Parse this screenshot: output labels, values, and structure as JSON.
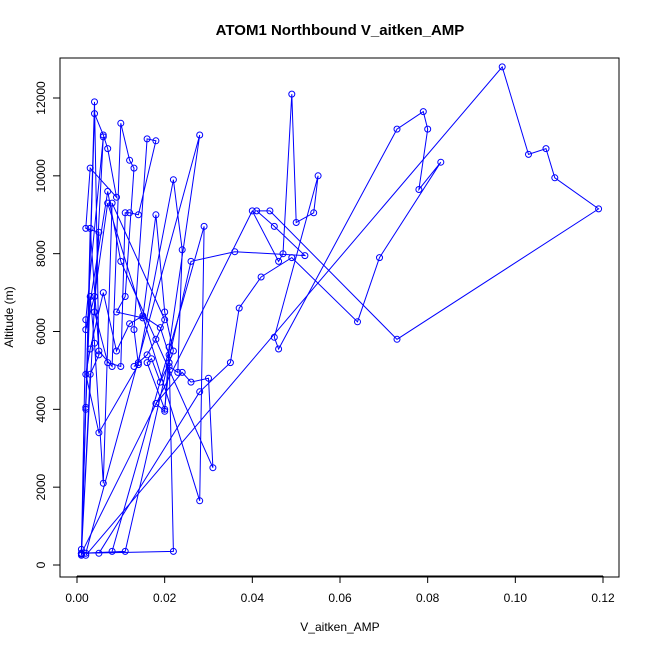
{
  "chart_data": {
    "type": "line",
    "title": "ATOM1 Northbound V_aitken_AMP",
    "xlabel": "V_aitken_AMP",
    "ylabel": "Altitude (m)",
    "xlim": [
      0.0,
      0.12
    ],
    "ylim": [
      0,
      12800
    ],
    "x_ticks": [
      0.0,
      0.02,
      0.04,
      0.06,
      0.08,
      0.1,
      0.12
    ],
    "x_tick_labels": [
      "0.00",
      "0.02",
      "0.04",
      "0.06",
      "0.08",
      "0.10",
      "0.12"
    ],
    "y_ticks": [
      0,
      2000,
      4000,
      6000,
      8000,
      10000,
      12000
    ],
    "y_tick_labels": [
      "0",
      "2000",
      "4000",
      "6000",
      "8000",
      "10000",
      "12000"
    ],
    "grid": false,
    "marker": "open-circle",
    "color": "#0000ff",
    "series": [
      {
        "x": [
          0.001,
          0.004,
          0.005,
          0.003,
          0.001,
          0.002,
          0.006,
          0.001,
          0.002,
          0.003,
          0.005,
          0.008,
          0.01,
          0.012,
          0.013,
          0.011,
          0.009,
          0.015,
          0.018,
          0.02,
          0.022,
          0.021,
          0.019,
          0.017,
          0.016,
          0.02,
          0.021,
          0.023,
          0.024,
          0.022,
          0.014,
          0.013,
          0.016,
          0.018,
          0.02,
          0.008,
          0.006,
          0.004,
          0.003,
          0.002,
          0.001
        ],
        "y": [
          300,
          11900,
          5400,
          4900,
          250,
          6300,
          11000,
          300,
          4000,
          8650,
          5500,
          5100,
          11350,
          10400,
          10200,
          6900,
          6500,
          6350,
          9000,
          6500,
          5500,
          5200,
          4700,
          5300,
          5200,
          4000,
          5100,
          4950,
          8100,
          9900,
          5200,
          5100,
          5400,
          5800,
          6300,
          9300,
          2100,
          5700,
          6900,
          4050,
          400
        ]
      },
      {
        "x": [
          0.001,
          0.004,
          0.006,
          0.007,
          0.009,
          0.003,
          0.002,
          0.005,
          0.004,
          0.007,
          0.01,
          0.011,
          0.012,
          0.014,
          0.018,
          0.016,
          0.013,
          0.014,
          0.005,
          0.002,
          0.003,
          0.006,
          0.009,
          0.012,
          0.015,
          0.019,
          0.021,
          0.022,
          0.001
        ],
        "y": [
          280,
          11600,
          11050,
          10700,
          9450,
          10200,
          8650,
          8550,
          6500,
          5200,
          5100,
          9050,
          9050,
          9000,
          10900,
          10950,
          6050,
          5150,
          3400,
          4900,
          5550,
          7000,
          5500,
          6200,
          6400,
          6100,
          5400,
          350,
          300
        ]
      },
      {
        "x": [
          0.002,
          0.028,
          0.021,
          0.02,
          0.018,
          0.024,
          0.026,
          0.03,
          0.031,
          0.01,
          0.007,
          0.002,
          0.004,
          0.007,
          0.028,
          0.029,
          0.008
        ],
        "y": [
          300,
          11050,
          5600,
          3950,
          4150,
          4950,
          4700,
          4800,
          2500,
          7800,
          9600,
          6050,
          6900,
          9300,
          1650,
          8700,
          350
        ]
      },
      {
        "x": [
          0.001,
          0.04,
          0.046,
          0.047,
          0.049,
          0.05,
          0.054,
          0.055,
          0.045,
          0.046,
          0.073,
          0.079,
          0.08,
          0.078,
          0.083,
          0.069,
          0.064,
          0.049,
          0.042,
          0.037,
          0.035,
          0.028,
          0.005
        ],
        "y": [
          300,
          9100,
          7800,
          8000,
          12100,
          8800,
          9050,
          10000,
          5850,
          5550,
          11200,
          11650,
          11200,
          9650,
          10350,
          7900,
          6250,
          7900,
          7400,
          6600,
          5200,
          4450,
          300
        ]
      },
      {
        "x": [
          0.002,
          0.097,
          0.103,
          0.107,
          0.109,
          0.119,
          0.073,
          0.044,
          0.041,
          0.045,
          0.052,
          0.036,
          0.026,
          0.011,
          0.001
        ],
        "y": [
          250,
          12800,
          10550,
          10700,
          9950,
          9150,
          5800,
          9100,
          9100,
          8700,
          7950,
          8050,
          7800,
          350,
          300
        ]
      }
    ]
  }
}
